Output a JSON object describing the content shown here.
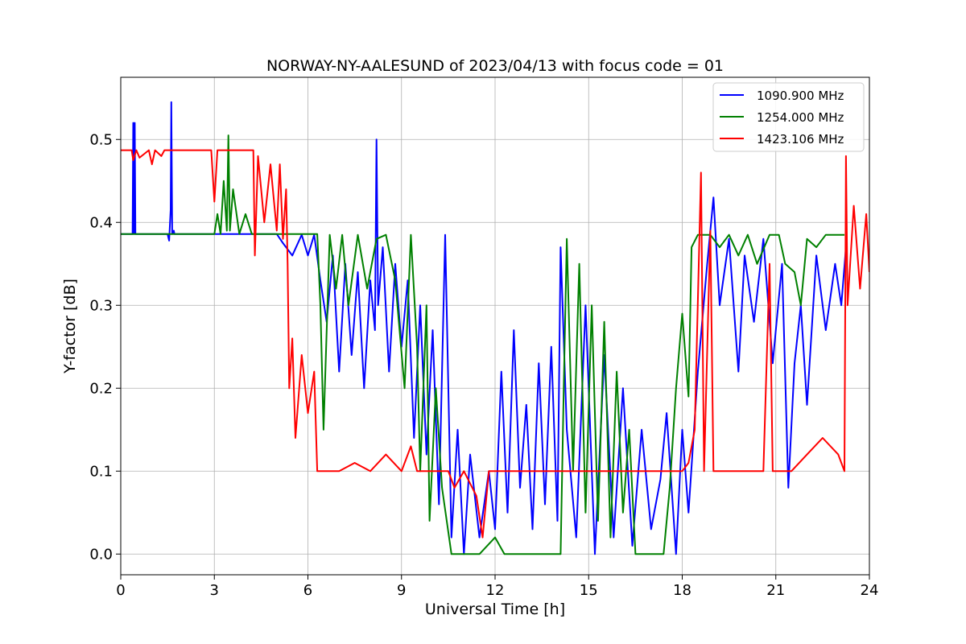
{
  "chart_data": {
    "type": "line",
    "title": "NORWAY-NY-AALESUND of 2023/04/13 with focus code = 01",
    "xlabel": "Universal Time [h]",
    "ylabel": "Y-factor [dB]",
    "xlim": [
      0,
      24
    ],
    "ylim": [
      -0.025,
      0.575
    ],
    "xticks": [
      0,
      3,
      6,
      9,
      12,
      15,
      18,
      21,
      24
    ],
    "yticks": [
      0.0,
      0.1,
      0.2,
      0.3,
      0.4,
      0.5
    ],
    "ytick_labels": [
      "0.0",
      "0.1",
      "0.2",
      "0.3",
      "0.4",
      "0.5"
    ],
    "grid": true,
    "legend_position": "top-right",
    "series": [
      {
        "name": "1090.900 MHz",
        "color": "#0000ff",
        "points": [
          [
            0.0,
            0.386
          ],
          [
            0.38,
            0.386
          ],
          [
            0.4,
            0.52
          ],
          [
            0.42,
            0.386
          ],
          [
            0.45,
            0.52
          ],
          [
            0.47,
            0.386
          ],
          [
            1.5,
            0.386
          ],
          [
            1.55,
            0.378
          ],
          [
            1.6,
            0.415
          ],
          [
            1.62,
            0.545
          ],
          [
            1.65,
            0.386
          ],
          [
            1.7,
            0.39
          ],
          [
            1.72,
            0.386
          ],
          [
            5.0,
            0.386
          ],
          [
            5.2,
            0.375
          ],
          [
            5.5,
            0.36
          ],
          [
            5.8,
            0.385
          ],
          [
            6.0,
            0.36
          ],
          [
            6.2,
            0.385
          ],
          [
            6.4,
            0.33
          ],
          [
            6.6,
            0.28
          ],
          [
            6.8,
            0.36
          ],
          [
            7.0,
            0.22
          ],
          [
            7.2,
            0.35
          ],
          [
            7.4,
            0.24
          ],
          [
            7.6,
            0.34
          ],
          [
            7.8,
            0.2
          ],
          [
            8.0,
            0.33
          ],
          [
            8.15,
            0.27
          ],
          [
            8.2,
            0.5
          ],
          [
            8.25,
            0.3
          ],
          [
            8.4,
            0.37
          ],
          [
            8.6,
            0.22
          ],
          [
            8.8,
            0.35
          ],
          [
            9.0,
            0.25
          ],
          [
            9.2,
            0.33
          ],
          [
            9.4,
            0.14
          ],
          [
            9.6,
            0.3
          ],
          [
            9.8,
            0.12
          ],
          [
            10.0,
            0.27
          ],
          [
            10.2,
            0.06
          ],
          [
            10.4,
            0.385
          ],
          [
            10.6,
            0.02
          ],
          [
            10.8,
            0.15
          ],
          [
            11.0,
            0.0
          ],
          [
            11.2,
            0.12
          ],
          [
            11.5,
            0.02
          ],
          [
            11.8,
            0.1
          ],
          [
            12.0,
            0.03
          ],
          [
            12.2,
            0.22
          ],
          [
            12.4,
            0.05
          ],
          [
            12.6,
            0.27
          ],
          [
            12.8,
            0.08
          ],
          [
            13.0,
            0.18
          ],
          [
            13.2,
            0.03
          ],
          [
            13.4,
            0.23
          ],
          [
            13.6,
            0.06
          ],
          [
            13.8,
            0.25
          ],
          [
            14.0,
            0.04
          ],
          [
            14.1,
            0.37
          ],
          [
            14.3,
            0.15
          ],
          [
            14.6,
            0.02
          ],
          [
            14.9,
            0.3
          ],
          [
            15.2,
            0.0
          ],
          [
            15.5,
            0.24
          ],
          [
            15.8,
            0.02
          ],
          [
            16.1,
            0.2
          ],
          [
            16.4,
            0.01
          ],
          [
            16.7,
            0.15
          ],
          [
            17.0,
            0.03
          ],
          [
            17.3,
            0.09
          ],
          [
            17.5,
            0.17
          ],
          [
            17.8,
            0.0
          ],
          [
            18.0,
            0.15
          ],
          [
            18.2,
            0.05
          ],
          [
            18.5,
            0.22
          ],
          [
            18.8,
            0.35
          ],
          [
            19.0,
            0.43
          ],
          [
            19.2,
            0.3
          ],
          [
            19.5,
            0.38
          ],
          [
            19.8,
            0.22
          ],
          [
            20.0,
            0.36
          ],
          [
            20.3,
            0.28
          ],
          [
            20.6,
            0.38
          ],
          [
            20.9,
            0.23
          ],
          [
            21.2,
            0.35
          ],
          [
            21.4,
            0.08
          ],
          [
            21.6,
            0.23
          ],
          [
            21.8,
            0.3
          ],
          [
            22.0,
            0.18
          ],
          [
            22.3,
            0.36
          ],
          [
            22.6,
            0.27
          ],
          [
            22.9,
            0.35
          ],
          [
            23.1,
            0.3
          ],
          [
            23.25,
            0.37
          ]
        ]
      },
      {
        "name": "1254.000 MHz",
        "color": "#008000",
        "points": [
          [
            0.0,
            0.386
          ],
          [
            3.0,
            0.386
          ],
          [
            3.1,
            0.41
          ],
          [
            3.2,
            0.386
          ],
          [
            3.3,
            0.45
          ],
          [
            3.4,
            0.39
          ],
          [
            3.45,
            0.505
          ],
          [
            3.5,
            0.39
          ],
          [
            3.6,
            0.44
          ],
          [
            3.8,
            0.386
          ],
          [
            4.0,
            0.41
          ],
          [
            4.2,
            0.386
          ],
          [
            6.3,
            0.386
          ],
          [
            6.4,
            0.3
          ],
          [
            6.5,
            0.15
          ],
          [
            6.7,
            0.385
          ],
          [
            6.9,
            0.32
          ],
          [
            7.1,
            0.385
          ],
          [
            7.3,
            0.3
          ],
          [
            7.6,
            0.385
          ],
          [
            7.9,
            0.32
          ],
          [
            8.2,
            0.38
          ],
          [
            8.5,
            0.385
          ],
          [
            8.8,
            0.33
          ],
          [
            9.1,
            0.2
          ],
          [
            9.3,
            0.385
          ],
          [
            9.5,
            0.25
          ],
          [
            9.6,
            0.1
          ],
          [
            9.8,
            0.3
          ],
          [
            9.9,
            0.04
          ],
          [
            10.1,
            0.2
          ],
          [
            10.3,
            0.08
          ],
          [
            10.6,
            0.0
          ],
          [
            11.5,
            0.0
          ],
          [
            12.0,
            0.02
          ],
          [
            12.3,
            0.0
          ],
          [
            14.1,
            0.0
          ],
          [
            14.2,
            0.2
          ],
          [
            14.3,
            0.38
          ],
          [
            14.5,
            0.1
          ],
          [
            14.7,
            0.35
          ],
          [
            14.9,
            0.05
          ],
          [
            15.1,
            0.3
          ],
          [
            15.3,
            0.04
          ],
          [
            15.5,
            0.28
          ],
          [
            15.7,
            0.02
          ],
          [
            15.9,
            0.22
          ],
          [
            16.1,
            0.05
          ],
          [
            16.3,
            0.15
          ],
          [
            16.5,
            0.0
          ],
          [
            17.4,
            0.0
          ],
          [
            17.6,
            0.08
          ],
          [
            17.8,
            0.2
          ],
          [
            18.0,
            0.29
          ],
          [
            18.2,
            0.19
          ],
          [
            18.3,
            0.37
          ],
          [
            18.5,
            0.385
          ],
          [
            18.9,
            0.385
          ],
          [
            19.2,
            0.37
          ],
          [
            19.5,
            0.385
          ],
          [
            19.8,
            0.36
          ],
          [
            20.1,
            0.385
          ],
          [
            20.4,
            0.35
          ],
          [
            20.8,
            0.385
          ],
          [
            21.1,
            0.385
          ],
          [
            21.3,
            0.35
          ],
          [
            21.6,
            0.34
          ],
          [
            21.8,
            0.3
          ],
          [
            22.0,
            0.38
          ],
          [
            22.3,
            0.37
          ],
          [
            22.6,
            0.385
          ],
          [
            23.0,
            0.385
          ],
          [
            23.2,
            0.385
          ]
        ]
      },
      {
        "name": "1423.106 MHz",
        "color": "#ff0000",
        "points": [
          [
            0.0,
            0.487
          ],
          [
            0.35,
            0.487
          ],
          [
            0.4,
            0.475
          ],
          [
            0.5,
            0.487
          ],
          [
            0.6,
            0.478
          ],
          [
            0.9,
            0.487
          ],
          [
            1.0,
            0.47
          ],
          [
            1.1,
            0.487
          ],
          [
            1.3,
            0.48
          ],
          [
            1.4,
            0.487
          ],
          [
            2.9,
            0.487
          ],
          [
            3.0,
            0.425
          ],
          [
            3.1,
            0.487
          ],
          [
            4.25,
            0.487
          ],
          [
            4.3,
            0.36
          ],
          [
            4.4,
            0.48
          ],
          [
            4.6,
            0.4
          ],
          [
            4.8,
            0.47
          ],
          [
            5.0,
            0.39
          ],
          [
            5.1,
            0.47
          ],
          [
            5.2,
            0.38
          ],
          [
            5.3,
            0.44
          ],
          [
            5.35,
            0.35
          ],
          [
            5.4,
            0.2
          ],
          [
            5.5,
            0.26
          ],
          [
            5.6,
            0.14
          ],
          [
            5.8,
            0.24
          ],
          [
            6.0,
            0.17
          ],
          [
            6.2,
            0.22
          ],
          [
            6.3,
            0.1
          ],
          [
            7.0,
            0.1
          ],
          [
            7.5,
            0.11
          ],
          [
            8.0,
            0.1
          ],
          [
            8.5,
            0.12
          ],
          [
            9.0,
            0.1
          ],
          [
            9.3,
            0.13
          ],
          [
            9.5,
            0.1
          ],
          [
            10.5,
            0.1
          ],
          [
            10.7,
            0.08
          ],
          [
            11.0,
            0.1
          ],
          [
            11.4,
            0.07
          ],
          [
            11.6,
            0.02
          ],
          [
            11.8,
            0.1
          ],
          [
            12.0,
            0.1
          ],
          [
            14.0,
            0.1
          ],
          [
            18.0,
            0.1
          ],
          [
            18.2,
            0.11
          ],
          [
            18.4,
            0.15
          ],
          [
            18.6,
            0.46
          ],
          [
            18.7,
            0.1
          ],
          [
            18.9,
            0.39
          ],
          [
            19.0,
            0.1
          ],
          [
            20.6,
            0.1
          ],
          [
            20.8,
            0.35
          ],
          [
            20.9,
            0.1
          ],
          [
            21.5,
            0.1
          ],
          [
            22.0,
            0.12
          ],
          [
            22.5,
            0.14
          ],
          [
            23.0,
            0.12
          ],
          [
            23.2,
            0.1
          ],
          [
            23.25,
            0.48
          ],
          [
            23.3,
            0.3
          ],
          [
            23.5,
            0.42
          ],
          [
            23.7,
            0.32
          ],
          [
            23.9,
            0.41
          ],
          [
            24.0,
            0.34
          ]
        ]
      }
    ]
  }
}
